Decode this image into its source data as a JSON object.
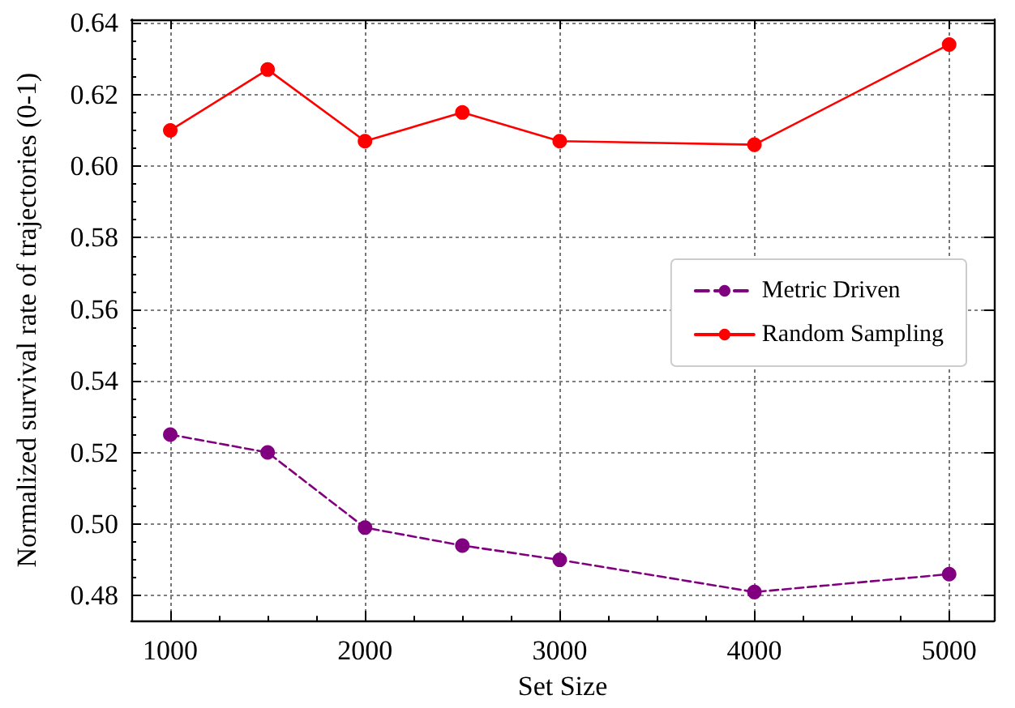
{
  "chart_data": {
    "type": "line",
    "xlabel": "Set Size",
    "ylabel": "Normalized survival rate of trajectories (0-1)",
    "x": [
      1000,
      1500,
      2000,
      2500,
      3000,
      4000,
      5000
    ],
    "series": [
      {
        "name": "Metric Driven",
        "color": "#800080",
        "line_style": "dashed",
        "values": [
          0.525,
          0.52,
          0.499,
          0.494,
          0.49,
          0.481,
          0.486
        ]
      },
      {
        "name": "Random Sampling",
        "color": "#ff0000",
        "line_style": "solid",
        "values": [
          0.61,
          0.627,
          0.607,
          0.615,
          0.607,
          0.606,
          0.634
        ]
      }
    ],
    "xlim": [
      800,
      5230
    ],
    "xticks": [
      1000,
      2000,
      3000,
      4000,
      5000
    ],
    "ylim": [
      0.473,
      0.641
    ],
    "yticks": [
      0.48,
      {
        "value": 0.5,
        "label": "0.50"
      },
      0.52,
      0.54,
      0.56,
      0.58,
      {
        "value": 0.6,
        "label": "0.60"
      },
      0.62,
      0.64
    ],
    "grid": true,
    "legend": "right",
    "marker": "circle"
  }
}
